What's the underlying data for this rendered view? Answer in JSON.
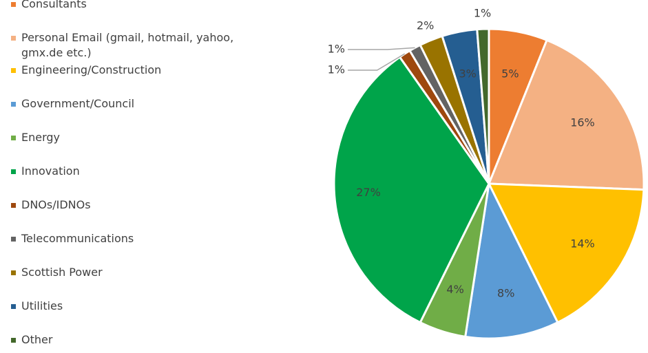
{
  "chart_data": {
    "type": "pie",
    "title": "",
    "legend_position": "left",
    "slices": [
      {
        "name": "Consultants",
        "value": 5,
        "label": "5%",
        "color": "#ED7D31"
      },
      {
        "name": "Personal Email (gmail, hotmail, yahoo, gmx.de etc.)",
        "value": 16,
        "label": "16%",
        "color": "#F4B183"
      },
      {
        "name": "Engineering/Construction",
        "value": 14,
        "label": "14%",
        "color": "#FFC000"
      },
      {
        "name": "Government/Council",
        "value": 8,
        "label": "8%",
        "color": "#5B9BD5"
      },
      {
        "name": "Energy",
        "value": 4,
        "label": "4%",
        "color": "#70AD47"
      },
      {
        "name": "Innovation",
        "value": 27,
        "label": "27%",
        "color": "#00A44A"
      },
      {
        "name": "DNOs/IDNOs",
        "value": 1,
        "label": "1%",
        "color": "#9E480E"
      },
      {
        "name": "Telecommunications",
        "value": 1,
        "label": "1%",
        "color": "#636363"
      },
      {
        "name": "Scottish Power",
        "value": 2,
        "label": "2%",
        "color": "#997300"
      },
      {
        "name": "Utilities",
        "value": 3,
        "label": "3%",
        "color": "#255E91"
      },
      {
        "name": "Other",
        "value": 1,
        "label": "1%",
        "color": "#43682B"
      }
    ]
  }
}
